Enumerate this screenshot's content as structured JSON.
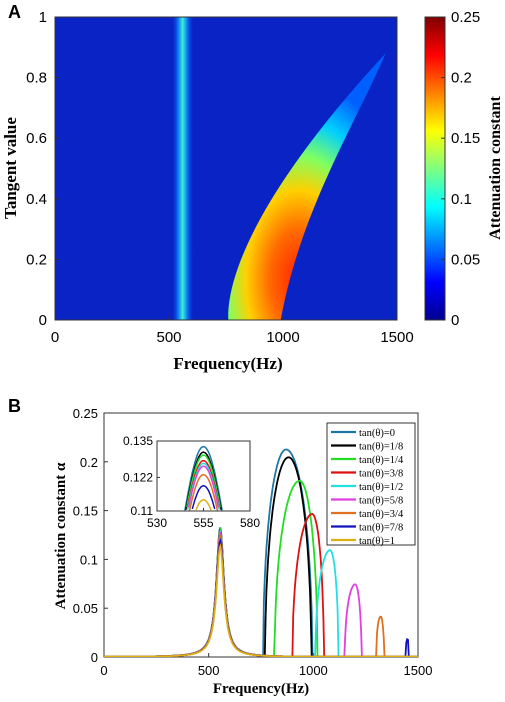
{
  "panel_a": {
    "label": "A",
    "chart_data": {
      "type": "heatmap",
      "xlabel": "Frequency(Hz)",
      "ylabel": "Tangent value",
      "xlim": [
        0,
        1500
      ],
      "ylim": [
        0,
        1
      ],
      "xticks": [
        "0",
        "500",
        "1000",
        "1500"
      ],
      "yticks": [
        "0",
        "0.2",
        "0.4",
        "0.6",
        "0.8",
        "1"
      ],
      "colorbar": {
        "label": "Attenuation constant",
        "range": [
          0,
          0.25
        ],
        "ticks": [
          "0",
          "0.05",
          "0.1",
          "0.15",
          "0.2",
          "0.25"
        ],
        "colormap": "jet"
      },
      "features": [
        {
          "kind": "vertical_band",
          "center_hz": 560,
          "peak_value": 0.12
        },
        {
          "kind": "curved_band",
          "start_hz_at_0": 760,
          "end_hz_at_0": 990,
          "tip_hz": 1450,
          "tip_tan": 0.88,
          "peak_value": 0.21
        }
      ]
    }
  },
  "panel_b": {
    "label": "B",
    "chart_data": {
      "type": "line",
      "xlabel": "Frequency(Hz)",
      "ylabel": "Attenuation constant α",
      "xlim": [
        0,
        1500
      ],
      "ylim": [
        0,
        0.25
      ],
      "xticks": [
        "0",
        "500",
        "1000",
        "1500"
      ],
      "yticks": [
        "0",
        "0.05",
        "0.1",
        "0.15",
        "0.2",
        "0.25"
      ],
      "legend_position": "top-right",
      "series": [
        {
          "name": "tan(θ)=0",
          "color": "#1f77a4",
          "low_peak": 0.133,
          "high_start": 760,
          "high_peak_x": 870,
          "high_peak": 0.212,
          "high_end": 995
        },
        {
          "name": "tan(θ)=1/8",
          "color": "#000000",
          "low_peak": 0.131,
          "high_start": 770,
          "high_peak_x": 882,
          "high_peak": 0.204,
          "high_end": 990
        },
        {
          "name": "tan(θ)=1/4",
          "color": "#22dd22",
          "low_peak": 0.13,
          "high_start": 815,
          "high_peak_x": 935,
          "high_peak": 0.18,
          "high_end": 1020
        },
        {
          "name": "tan(θ)=3/8",
          "color": "#dd1111",
          "low_peak": 0.128,
          "high_start": 900,
          "high_peak_x": 995,
          "high_peak": 0.146,
          "high_end": 1050
        },
        {
          "name": "tan(θ)=1/2",
          "color": "#22e0e0",
          "low_peak": 0.127,
          "high_start": 1010,
          "high_peak_x": 1080,
          "high_peak": 0.109,
          "high_end": 1120
        },
        {
          "name": "tan(θ)=5/8",
          "color": "#e040e0",
          "low_peak": 0.126,
          "high_start": 1150,
          "high_peak_x": 1200,
          "high_peak": 0.074,
          "high_end": 1230
        },
        {
          "name": "tan(θ)=3/4",
          "color": "#e07020",
          "low_peak": 0.123,
          "high_start": 1300,
          "high_peak_x": 1322,
          "high_peak": 0.041,
          "high_end": 1338
        },
        {
          "name": "tan(θ)=7/8",
          "color": "#1010c0",
          "low_peak": 0.119,
          "high_start": 1440,
          "high_peak_x": 1450,
          "high_peak": 0.018,
          "high_end": 1456
        },
        {
          "name": "tan(θ)=1",
          "color": "#e0b010",
          "low_peak": 0.114,
          "high_start": null,
          "high_peak_x": null,
          "high_peak": null,
          "high_end": null
        }
      ],
      "low_peak_x": 555,
      "inset": {
        "xlim": [
          530,
          580
        ],
        "ylim": [
          0.11,
          0.135
        ],
        "xticks": [
          "530",
          "555",
          "580"
        ],
        "yticks": [
          "0.11",
          "0.122",
          "0.135"
        ]
      }
    }
  }
}
